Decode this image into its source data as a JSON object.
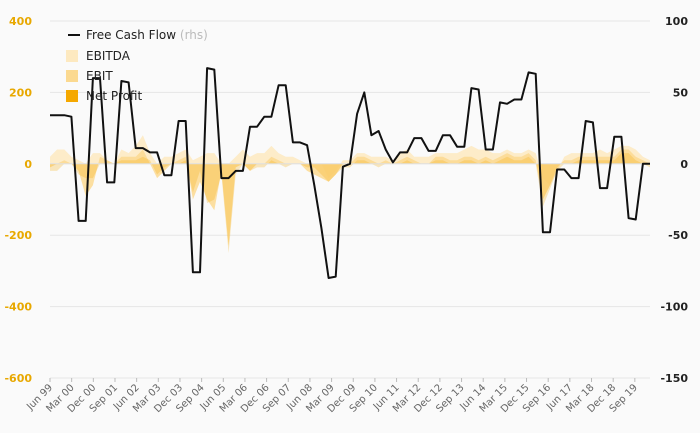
{
  "chart_data": {
    "type": "area",
    "left_axis": {
      "ylim": [
        -600,
        400
      ],
      "ticks": [
        400,
        200,
        0,
        -200,
        -400,
        -600
      ],
      "tick_labels": [
        "400",
        "200",
        "0",
        "-200",
        "-400",
        "-600"
      ],
      "color": "#e8a800"
    },
    "right_axis": {
      "ylim": [
        -150,
        100
      ],
      "ticks": [
        100,
        50,
        0,
        -50,
        -100,
        -150
      ],
      "tick_labels": [
        "100",
        "50",
        "0",
        "-50",
        "-100",
        "-150"
      ]
    },
    "x_labels": [
      "Jun 99",
      "Mar 00",
      "Dec 00",
      "Sep 01",
      "Jun 02",
      "Mar 03",
      "Dec 03",
      "Sep 04",
      "Jun 05",
      "Mar 06",
      "Dec 06",
      "Sep 07",
      "Jun 08",
      "Mar 09",
      "Dec 09",
      "Sep 10",
      "Jun 11",
      "Mar 12",
      "Dec 12",
      "Sep 13",
      "Jun 14",
      "Mar 15",
      "Dec 15",
      "Sep 16",
      "Jun 17",
      "Mar 18",
      "Dec 18",
      "Sep 19"
    ],
    "legend": {
      "position": "top-left"
    },
    "grid": true,
    "series": [
      {
        "name": "Free Cash Flow",
        "suffix": "(rhs)",
        "type": "line",
        "axis": "right",
        "color": "#111111",
        "values": [
          34,
          34,
          34,
          33,
          -40,
          -40,
          60,
          60,
          -13,
          -13,
          58,
          57,
          11,
          11,
          8,
          8,
          -8,
          -8,
          30,
          30,
          -76,
          -76,
          67,
          66,
          -10,
          -10,
          -5,
          -5,
          26,
          26,
          33,
          33,
          55,
          55,
          15,
          15,
          13,
          -15,
          -45,
          -80,
          -79,
          -2,
          0,
          35,
          50,
          20,
          23,
          10,
          1,
          8,
          8,
          18,
          18,
          9,
          9,
          20,
          20,
          12,
          12,
          53,
          52,
          10,
          10,
          43,
          42,
          45,
          45,
          64,
          63,
          -48,
          -48,
          -4,
          -4,
          -10,
          -10,
          30,
          29,
          -17,
          -17,
          19,
          19,
          -38,
          -39,
          0,
          0
        ]
      },
      {
        "name": "EBITDA",
        "type": "area",
        "axis": "left",
        "color": "#fde9c0",
        "values": [
          20,
          40,
          40,
          20,
          10,
          0,
          30,
          30,
          10,
          0,
          40,
          30,
          50,
          80,
          30,
          0,
          20,
          20,
          30,
          40,
          10,
          20,
          30,
          30,
          0,
          0,
          20,
          40,
          20,
          30,
          30,
          50,
          30,
          20,
          20,
          10,
          0,
          0,
          0,
          -40,
          -20,
          10,
          10,
          30,
          30,
          20,
          20,
          20,
          10,
          30,
          40,
          20,
          20,
          20,
          30,
          30,
          30,
          30,
          40,
          50,
          40,
          40,
          30,
          30,
          40,
          30,
          30,
          40,
          30,
          -40,
          -60,
          -20,
          20,
          30,
          30,
          30,
          30,
          40,
          30,
          40,
          50,
          50,
          40,
          20,
          10
        ]
      },
      {
        "name": "EBIT",
        "type": "area",
        "axis": "left",
        "color": "#fbd990",
        "values": [
          -10,
          0,
          10,
          0,
          -20,
          -90,
          -60,
          20,
          10,
          0,
          20,
          20,
          20,
          40,
          0,
          -40,
          -20,
          0,
          10,
          20,
          -100,
          -50,
          -100,
          -130,
          -20,
          -230,
          -10,
          0,
          -20,
          0,
          0,
          20,
          10,
          0,
          0,
          0,
          -20,
          -30,
          -40,
          -50,
          -30,
          0,
          0,
          20,
          20,
          10,
          0,
          10,
          0,
          10,
          20,
          10,
          0,
          0,
          20,
          20,
          10,
          10,
          20,
          20,
          10,
          20,
          10,
          20,
          30,
          20,
          20,
          30,
          10,
          -100,
          -60,
          -10,
          10,
          10,
          20,
          20,
          20,
          20,
          20,
          20,
          40,
          40,
          20,
          10,
          0
        ]
      },
      {
        "name": "Net Profit",
        "type": "area",
        "axis": "left",
        "color": "#f5a800",
        "values": [
          -20,
          -20,
          0,
          0,
          -30,
          -40,
          -40,
          0,
          0,
          0,
          10,
          10,
          10,
          20,
          10,
          -30,
          -10,
          0,
          0,
          10,
          -80,
          -20,
          -110,
          -100,
          -30,
          -250,
          -30,
          0,
          -20,
          -10,
          -10,
          10,
          0,
          -10,
          0,
          0,
          -10,
          -10,
          -30,
          -50,
          -30,
          -10,
          -10,
          10,
          10,
          0,
          -10,
          0,
          0,
          0,
          10,
          0,
          0,
          0,
          10,
          10,
          0,
          0,
          10,
          10,
          0,
          10,
          0,
          10,
          20,
          10,
          10,
          20,
          0,
          -120,
          -70,
          -20,
          0,
          0,
          10,
          10,
          10,
          10,
          10,
          10,
          30,
          30,
          10,
          0,
          -10
        ]
      }
    ]
  }
}
